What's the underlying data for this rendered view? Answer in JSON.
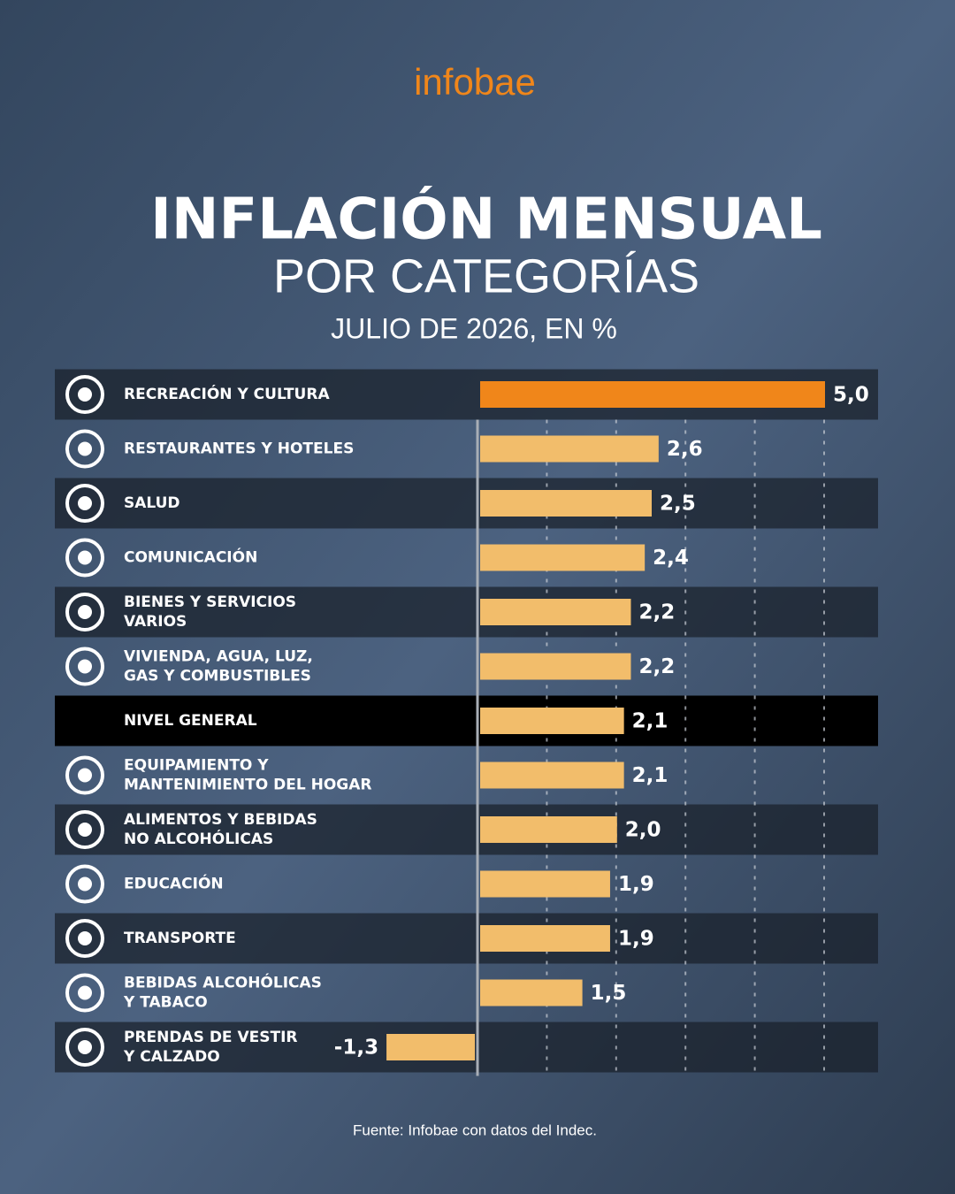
{
  "brand": "infobae",
  "chart_data": {
    "type": "barh",
    "title": "INFLACIÓN MENSUAL",
    "subtitle": "POR CATEGORÍAS",
    "period": "JULIO DE 2026, EN %",
    "source": "Fuente: Infobae con datos del Indec.",
    "categories": [
      "RECREACIÓN Y CULTURA",
      "RESTAURANTES Y HOTELES",
      "SALUD",
      "COMUNICACIÓN",
      "BIENES Y SERVICIOS\nVARIOS",
      "VIVIENDA, AGUA, LUZ,\nGAS Y COMBUSTIBLES",
      "NIVEL GENERAL",
      "EQUIPAMIENTO Y\nMANTENIMIENTO DEL HOGAR",
      "ALIMENTOS Y BEBIDAS\nNO ALCOHÓLICAS",
      "EDUCACIÓN",
      "TRANSPORTE",
      "BEBIDAS ALCOHÓLICAS\nY TABACO",
      "PRENDAS DE VESTIR\nY CALZADO"
    ],
    "values": [
      5.0,
      2.6,
      2.5,
      2.4,
      2.2,
      2.2,
      2.1,
      2.1,
      2.0,
      1.9,
      1.9,
      1.5,
      -1.3
    ],
    "value_labels": [
      "5,0",
      "2,6",
      "2,5",
      "2,4",
      "2,2",
      "2,2",
      "2,1",
      "2,1",
      "2,0",
      "1,9",
      "1,9",
      "1,5",
      "-1,3"
    ],
    "colors": [
      "#f0861a",
      "#f2bd6b",
      "#f2bd6b",
      "#f2bd6b",
      "#f2bd6b",
      "#f2bd6b",
      "#f2bd6b",
      "#f2bd6b",
      "#f2bd6b",
      "#f2bd6b",
      "#f2bd6b",
      "#f2bd6b",
      "#f2bd6b"
    ],
    "xlim": [
      -1.5,
      5.5
    ],
    "xticks": [
      1,
      2,
      3,
      4,
      5
    ],
    "grid": true
  }
}
